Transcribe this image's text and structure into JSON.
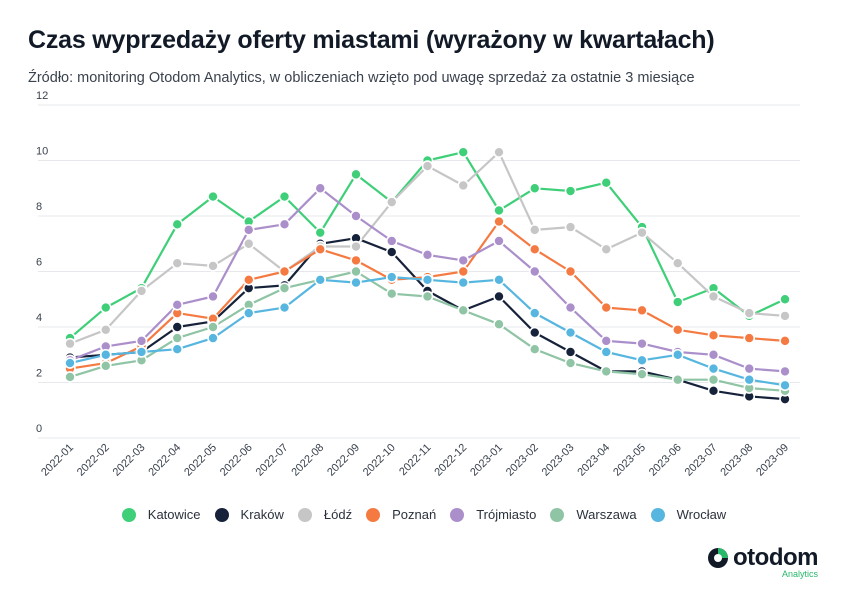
{
  "title": "Czas wyprzedaży oferty miastami (wyrażony w kwartałach)",
  "subtitle": "Źródło: monitoring Otodom Analytics, w obliczeniach wzięto pod uwagę sprzedaż za ostatnie 3 miesiące",
  "logo": {
    "name": "otodom",
    "sub": "Analytics",
    "icon": "otodom-logo-icon"
  },
  "chart_data": {
    "type": "line",
    "title": "Czas wyprzedaży oferty miastami (wyrażony w kwartałach)",
    "xlabel": "",
    "ylabel": "",
    "ylim": [
      0,
      12
    ],
    "yticks": [
      0,
      2,
      4,
      6,
      8,
      10,
      12
    ],
    "grid": true,
    "legend_position": "bottom",
    "categories": [
      "2022-01",
      "2022-02",
      "2022-03",
      "2022-04",
      "2022-05",
      "2022-06",
      "2022-07",
      "2022-08",
      "2022-09",
      "2022-10",
      "2022-11",
      "2022-12",
      "2023-01",
      "2023-02",
      "2023-03",
      "2023-04",
      "2023-05",
      "2023-06",
      "2023-07",
      "2023-08",
      "2023-09"
    ],
    "series": [
      {
        "name": "Katowice",
        "color": "#3ecf78",
        "values": [
          3.6,
          4.7,
          5.4,
          7.7,
          8.7,
          7.8,
          8.7,
          7.4,
          9.5,
          8.5,
          10.0,
          10.3,
          8.2,
          9.0,
          8.9,
          9.2,
          7.6,
          4.9,
          5.4,
          4.4,
          5.0
        ]
      },
      {
        "name": "Kraków",
        "color": "#16213a",
        "values": [
          2.9,
          3.0,
          3.1,
          4.0,
          4.2,
          5.4,
          5.5,
          7.0,
          7.2,
          6.7,
          5.3,
          4.6,
          5.1,
          3.8,
          3.1,
          2.4,
          2.4,
          2.1,
          1.7,
          1.5,
          1.4
        ]
      },
      {
        "name": "Łódź",
        "color": "#c6c6c6",
        "values": [
          3.4,
          3.9,
          5.3,
          6.3,
          6.2,
          7.0,
          6.0,
          6.9,
          6.9,
          8.5,
          9.8,
          9.1,
          10.3,
          7.5,
          7.6,
          6.8,
          7.4,
          6.3,
          5.1,
          4.5,
          4.4
        ]
      },
      {
        "name": "Poznań",
        "color": "#f47a42",
        "values": [
          2.5,
          2.7,
          3.3,
          4.5,
          4.3,
          5.7,
          6.0,
          6.8,
          6.4,
          5.7,
          5.8,
          6.0,
          7.8,
          6.8,
          6.0,
          4.7,
          4.6,
          3.9,
          3.7,
          3.6,
          3.5
        ]
      },
      {
        "name": "Trójmiasto",
        "color": "#ab8fcb",
        "values": [
          2.8,
          3.3,
          3.5,
          4.8,
          5.1,
          7.5,
          7.7,
          9.0,
          8.0,
          7.1,
          6.6,
          6.4,
          7.1,
          6.0,
          4.7,
          3.5,
          3.4,
          3.1,
          3.0,
          2.5,
          2.4
        ]
      },
      {
        "name": "Warszawa",
        "color": "#8fc4a4",
        "values": [
          2.2,
          2.6,
          2.8,
          3.6,
          4.0,
          4.8,
          5.4,
          5.7,
          6.0,
          5.2,
          5.1,
          4.6,
          4.1,
          3.2,
          2.7,
          2.4,
          2.3,
          2.1,
          2.1,
          1.8,
          1.7
        ]
      },
      {
        "name": "Wrocław",
        "color": "#57b6e0",
        "values": [
          2.7,
          3.0,
          3.1,
          3.2,
          3.6,
          4.5,
          4.7,
          5.7,
          5.6,
          5.8,
          5.7,
          5.6,
          5.7,
          4.5,
          3.8,
          3.1,
          2.8,
          3.0,
          2.5,
          2.1,
          1.9
        ]
      }
    ]
  }
}
